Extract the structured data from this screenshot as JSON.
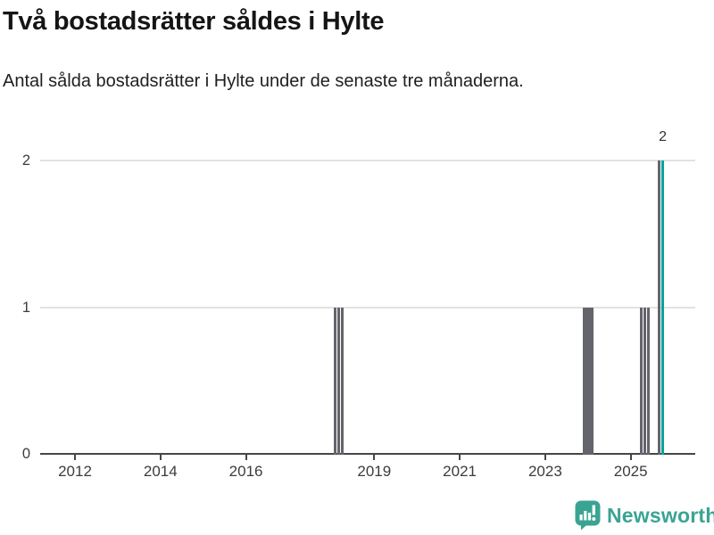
{
  "header": {
    "title": "Två bostadsrätter såldes i Hylte",
    "subtitle": "Antal sålda bostadsrätter i Hylte under de senaste tre månaderna."
  },
  "chart_data": {
    "type": "bar",
    "title": "Två bostadsrätter såldes i Hylte",
    "xlabel": "",
    "ylabel": "",
    "x_unit": "month",
    "x_tick_years": [
      2012,
      2014,
      2016,
      2019,
      2021,
      2023,
      2025
    ],
    "y_ticks": [
      0,
      1,
      2
    ],
    "ylim": [
      0,
      2
    ],
    "grid": "horizontal",
    "legend": "none",
    "bars": [
      {
        "month": "2018-02",
        "value": 1
      },
      {
        "month": "2018-03",
        "value": 1
      },
      {
        "month": "2018-04",
        "value": 1
      },
      {
        "month": "2023-12",
        "value": 1
      },
      {
        "month": "2024-01",
        "value": 1
      },
      {
        "month": "2024-02",
        "value": 1
      },
      {
        "month": "2025-04",
        "value": 1
      },
      {
        "month": "2025-05",
        "value": 1
      },
      {
        "month": "2025-06",
        "value": 1
      },
      {
        "month": "2025-09",
        "value": 2
      },
      {
        "month": "2025-10",
        "value": 2,
        "highlight": true,
        "label": "2"
      }
    ],
    "colors": {
      "bar": "#64646c",
      "highlight": "#00a39c"
    }
  },
  "footer": {
    "brand": "Newsworthy"
  }
}
